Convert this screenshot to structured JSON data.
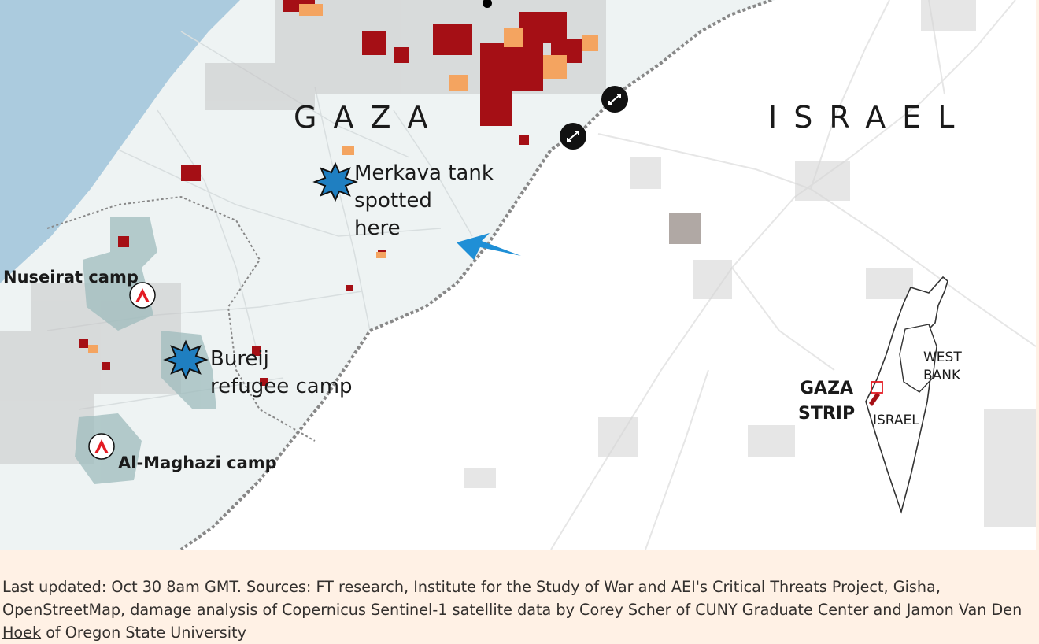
{
  "map": {
    "regions": {
      "gaza": "GAZA",
      "israel": "ISRAEL"
    },
    "annotations": {
      "tank": [
        "Merkava tank",
        "spotted",
        "here"
      ],
      "bureij": [
        "Bureij",
        "refugee camp"
      ]
    },
    "camps": {
      "nuseirat": "Nuseirat camp",
      "maghazi": "Al-Maghazi camp"
    },
    "inset": {
      "gaza_strip": [
        "GAZA",
        "STRIP"
      ],
      "west_bank": [
        "WEST",
        "BANK"
      ],
      "israel": "ISRAEL"
    },
    "colors": {
      "sea": "#abcbde",
      "gaza_land": "#eef3f3",
      "israel_land": "#ffffff",
      "camp_fill": "#9fbcbd",
      "severe_damage": "#a50f15",
      "moderate_damage": "#f4a460",
      "explosion": "#1f7fc1",
      "arrow": "#1f8fd6",
      "border": "#888888",
      "camp_marker": "#e31b23"
    },
    "icons": [
      "explosion-icon",
      "camp-marker-icon",
      "crossing-icon",
      "direction-arrow-icon"
    ]
  },
  "footer": {
    "text_before": "Last updated: Oct 30 8am GMT. Sources: FT research, Institute for the Study of War and AEI's Critical Threats Project, Gisha, OpenStreetMap, damage analysis of Copernicus Sentinel-1 satellite data by ",
    "link1": "Corey Scher",
    "text_middle": " of CUNY Graduate Center and ",
    "link2": "Jamon Van Den Hoek",
    "text_after": " of Oregon State University"
  }
}
